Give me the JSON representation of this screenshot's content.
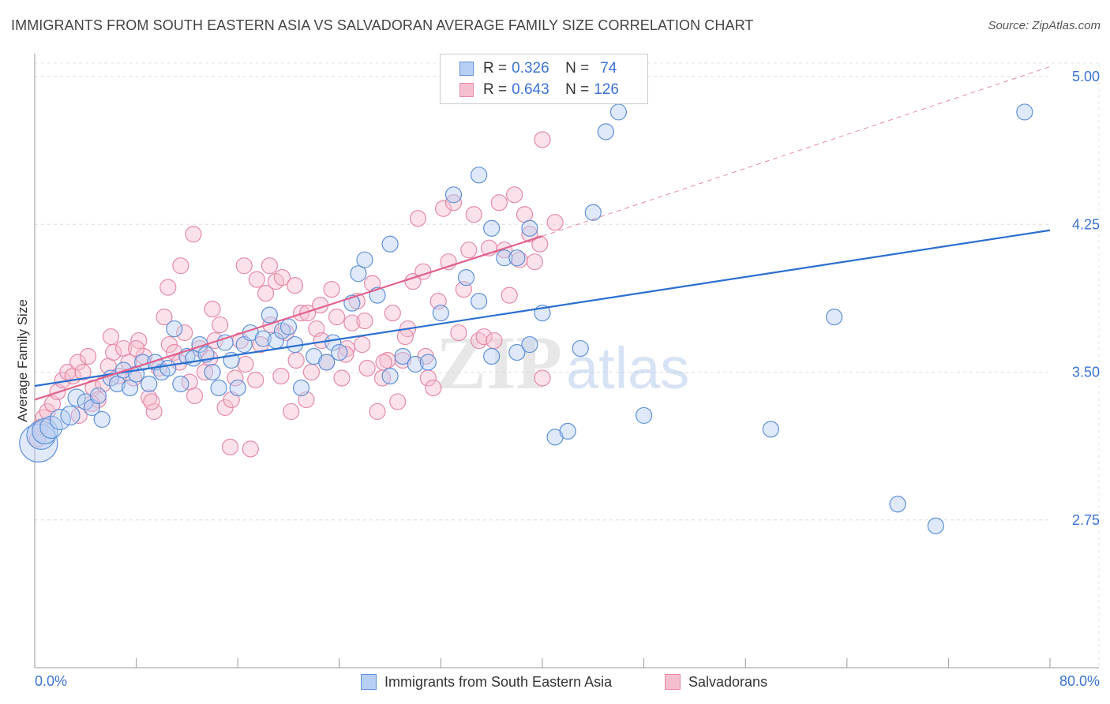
{
  "title": "IMMIGRANTS FROM SOUTH EASTERN ASIA VS SALVADORAN AVERAGE FAMILY SIZE CORRELATION CHART",
  "source": "Source: ZipAtlas.com",
  "watermark": {
    "zip": "ZIP",
    "atlas": "atlas"
  },
  "colors": {
    "blue_fill": "#b7cff2",
    "blue_stroke": "#5f90d8",
    "blue_line": "#2b6fd0",
    "pink_fill": "#f6bfd0",
    "pink_stroke": "#e58aa6",
    "pink_line": "#e0628c",
    "axis_text": "#3b73d4",
    "grid": "#dddddd"
  },
  "legend": {
    "blue": {
      "r_label": "R = ",
      "r_value": "0.326",
      "n_label": "N = ",
      "n_value": "74"
    },
    "pink": {
      "r_label": "R = ",
      "r_value": "0.643",
      "n_label": "N = ",
      "n_value": "126"
    }
  },
  "chart_data": {
    "type": "scatter",
    "xlabel": "",
    "ylabel": "Average Family Size",
    "xlim": [
      0,
      80
    ],
    "ylim": [
      2.0,
      5.0
    ],
    "x_tick_labels": [
      "0.0%",
      "80.0%"
    ],
    "y_tick_labels": [
      "5.00",
      "4.25",
      "3.50",
      "2.75"
    ],
    "y_ticks": [
      5.0,
      4.25,
      3.5,
      2.75
    ],
    "grid": true,
    "series": [
      {
        "name": "Immigrants from South Eastern Asia",
        "color": "blue",
        "trend": {
          "x": [
            0,
            80
          ],
          "y": [
            3.43,
            4.22
          ],
          "dashed_to": null
        },
        "points": [
          [
            0.3,
            3.14
          ],
          [
            0.5,
            3.18
          ],
          [
            0.8,
            3.2
          ],
          [
            1.3,
            3.22
          ],
          [
            2,
            3.26
          ],
          [
            2.8,
            3.28
          ],
          [
            3.3,
            3.37
          ],
          [
            4,
            3.35
          ],
          [
            4.5,
            3.32
          ],
          [
            5,
            3.38
          ],
          [
            5.3,
            3.26
          ],
          [
            6,
            3.47
          ],
          [
            6.5,
            3.44
          ],
          [
            7,
            3.51
          ],
          [
            7.5,
            3.42
          ],
          [
            8,
            3.49
          ],
          [
            8.5,
            3.55
          ],
          [
            9,
            3.44
          ],
          [
            9.5,
            3.55
          ],
          [
            10,
            3.5
          ],
          [
            10.5,
            3.52
          ],
          [
            11,
            3.72
          ],
          [
            11.5,
            3.44
          ],
          [
            12,
            3.58
          ],
          [
            12.5,
            3.57
          ],
          [
            13,
            3.64
          ],
          [
            13.5,
            3.59
          ],
          [
            14,
            3.5
          ],
          [
            14.5,
            3.42
          ],
          [
            15,
            3.65
          ],
          [
            15.5,
            3.56
          ],
          [
            16,
            3.42
          ],
          [
            16.5,
            3.64
          ],
          [
            17,
            3.7
          ],
          [
            18,
            3.67
          ],
          [
            18.5,
            3.79
          ],
          [
            19,
            3.66
          ],
          [
            19.5,
            3.71
          ],
          [
            20,
            3.73
          ],
          [
            20.5,
            3.64
          ],
          [
            21,
            3.42
          ],
          [
            22,
            3.58
          ],
          [
            23,
            3.55
          ],
          [
            23.5,
            3.65
          ],
          [
            24,
            3.6
          ],
          [
            25,
            3.85
          ],
          [
            25.5,
            4.0
          ],
          [
            26,
            4.07
          ],
          [
            27,
            3.89
          ],
          [
            28,
            4.15
          ],
          [
            28,
            3.48
          ],
          [
            29,
            3.58
          ],
          [
            30,
            3.54
          ],
          [
            31,
            3.55
          ],
          [
            32,
            3.8
          ],
          [
            33,
            4.4
          ],
          [
            34,
            3.98
          ],
          [
            35,
            4.5
          ],
          [
            35,
            3.86
          ],
          [
            36,
            4.23
          ],
          [
            36,
            3.58
          ],
          [
            37,
            4.08
          ],
          [
            38,
            3.6
          ],
          [
            38,
            4.08
          ],
          [
            39,
            4.23
          ],
          [
            39,
            3.64
          ],
          [
            40,
            3.8
          ],
          [
            41,
            3.17
          ],
          [
            42,
            3.2
          ],
          [
            43,
            3.62
          ],
          [
            44,
            4.31
          ],
          [
            45,
            4.72
          ],
          [
            46,
            4.82
          ],
          [
            48,
            3.28
          ],
          [
            58,
            3.21
          ],
          [
            63,
            3.78
          ],
          [
            68,
            2.83
          ],
          [
            71,
            2.72
          ],
          [
            78,
            4.82
          ]
        ],
        "point_sizes": [
          24,
          18,
          16,
          14,
          13,
          12,
          11,
          10,
          10,
          10
        ]
      },
      {
        "name": "Salvadorans",
        "color": "pink",
        "trend": {
          "x": [
            0,
            40
          ],
          "y": [
            3.36,
            4.19
          ],
          "dashed_to": [
            80,
            5.05
          ]
        },
        "points": [
          [
            0.2,
            3.16
          ],
          [
            0.4,
            3.22
          ],
          [
            0.7,
            3.27
          ],
          [
            1,
            3.3
          ],
          [
            1.4,
            3.34
          ],
          [
            1.8,
            3.4
          ],
          [
            2.2,
            3.46
          ],
          [
            2.6,
            3.5
          ],
          [
            3,
            3.48
          ],
          [
            3.4,
            3.55
          ],
          [
            3.8,
            3.5
          ],
          [
            4.2,
            3.58
          ],
          [
            4.6,
            3.42
          ],
          [
            5,
            3.36
          ],
          [
            5.4,
            3.44
          ],
          [
            5.8,
            3.53
          ],
          [
            6.2,
            3.6
          ],
          [
            6.6,
            3.48
          ],
          [
            7,
            3.62
          ],
          [
            7.4,
            3.55
          ],
          [
            7.8,
            3.47
          ],
          [
            8.2,
            3.66
          ],
          [
            8.6,
            3.58
          ],
          [
            9,
            3.37
          ],
          [
            9.4,
            3.3
          ],
          [
            9.8,
            3.52
          ],
          [
            10.2,
            3.78
          ],
          [
            10.6,
            3.64
          ],
          [
            11,
            3.6
          ],
          [
            11.4,
            3.55
          ],
          [
            11.8,
            3.7
          ],
          [
            12.2,
            3.45
          ],
          [
            12.6,
            3.38
          ],
          [
            13,
            3.62
          ],
          [
            13.4,
            3.5
          ],
          [
            13.8,
            3.57
          ],
          [
            14.2,
            3.66
          ],
          [
            14.6,
            3.74
          ],
          [
            15,
            3.32
          ],
          [
            15.4,
            3.12
          ],
          [
            15.8,
            3.47
          ],
          [
            16.2,
            3.66
          ],
          [
            16.6,
            3.54
          ],
          [
            17,
            3.11
          ],
          [
            17.4,
            3.46
          ],
          [
            17.8,
            3.64
          ],
          [
            18.2,
            3.9
          ],
          [
            18.6,
            3.74
          ],
          [
            19,
            3.96
          ],
          [
            19.4,
            3.48
          ],
          [
            19.8,
            3.7
          ],
          [
            20.2,
            3.3
          ],
          [
            20.6,
            3.56
          ],
          [
            21,
            3.8
          ],
          [
            21.4,
            3.36
          ],
          [
            21.8,
            3.5
          ],
          [
            22.2,
            3.72
          ],
          [
            22.6,
            3.66
          ],
          [
            23,
            3.55
          ],
          [
            23.4,
            3.92
          ],
          [
            23.8,
            3.78
          ],
          [
            24.2,
            3.47
          ],
          [
            24.6,
            3.62
          ],
          [
            25,
            3.75
          ],
          [
            25.4,
            3.86
          ],
          [
            25.8,
            3.64
          ],
          [
            26.2,
            3.52
          ],
          [
            26.6,
            3.95
          ],
          [
            27,
            3.3
          ],
          [
            27.4,
            3.47
          ],
          [
            27.8,
            3.56
          ],
          [
            28.2,
            3.8
          ],
          [
            28.6,
            3.35
          ],
          [
            29,
            3.56
          ],
          [
            29.4,
            3.72
          ],
          [
            29.8,
            3.96
          ],
          [
            30.2,
            4.28
          ],
          [
            30.6,
            4.01
          ],
          [
            31,
            3.47
          ],
          [
            31.4,
            3.42
          ],
          [
            31.8,
            3.86
          ],
          [
            32.2,
            4.33
          ],
          [
            32.6,
            4.06
          ],
          [
            33,
            4.36
          ],
          [
            33.4,
            3.7
          ],
          [
            33.8,
            3.92
          ],
          [
            34.2,
            4.12
          ],
          [
            34.6,
            4.3
          ],
          [
            35,
            3.66
          ],
          [
            35.4,
            3.68
          ],
          [
            35.8,
            4.13
          ],
          [
            36.2,
            3.66
          ],
          [
            36.6,
            4.36
          ],
          [
            37,
            4.12
          ],
          [
            37.4,
            3.89
          ],
          [
            37.8,
            4.4
          ],
          [
            38.2,
            4.07
          ],
          [
            38.6,
            4.3
          ],
          [
            39,
            4.2
          ],
          [
            39.4,
            4.06
          ],
          [
            39.8,
            4.15
          ],
          [
            40,
            4.68
          ],
          [
            40,
            3.47
          ],
          [
            41,
            4.26
          ],
          [
            3.5,
            3.28
          ],
          [
            4.5,
            3.34
          ],
          [
            6,
            3.68
          ],
          [
            8,
            3.62
          ],
          [
            9.2,
            3.35
          ],
          [
            10.5,
            3.93
          ],
          [
            11.5,
            4.04
          ],
          [
            12.5,
            4.2
          ],
          [
            14,
            3.82
          ],
          [
            15.5,
            3.36
          ],
          [
            16.5,
            4.04
          ],
          [
            17.5,
            3.97
          ],
          [
            18.5,
            4.04
          ],
          [
            19.5,
            3.98
          ],
          [
            20.5,
            3.94
          ],
          [
            21.5,
            3.8
          ],
          [
            22.5,
            3.84
          ],
          [
            24.5,
            3.59
          ],
          [
            26,
            3.76
          ],
          [
            27.5,
            3.55
          ],
          [
            29.2,
            3.68
          ],
          [
            30.8,
            3.58
          ]
        ]
      }
    ]
  },
  "bottom_legend": {
    "blue_label": "Immigrants from South Eastern Asia",
    "pink_label": "Salvadorans"
  }
}
